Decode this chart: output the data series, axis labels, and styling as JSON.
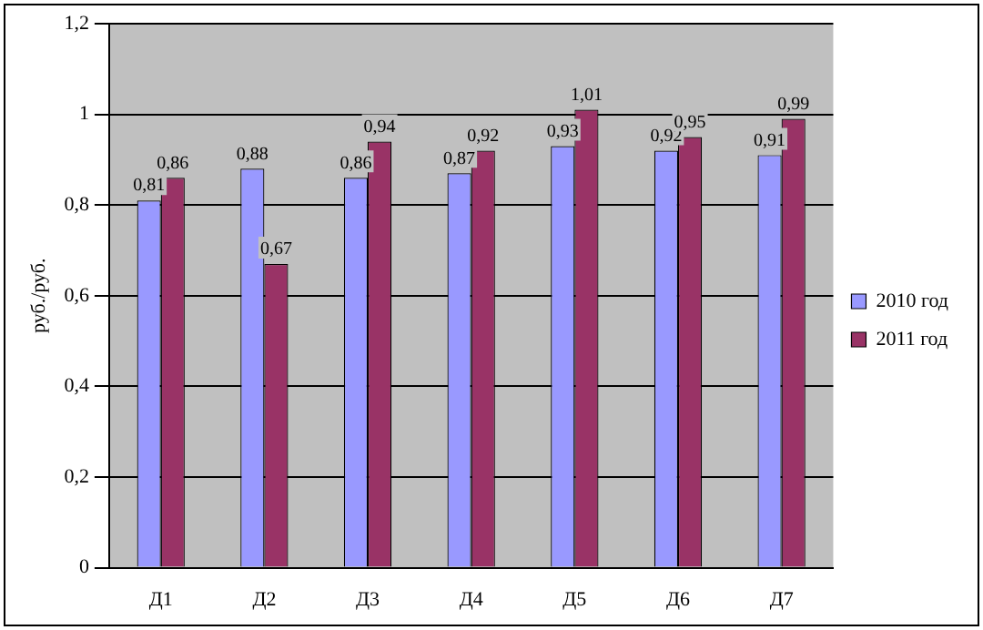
{
  "chart_data": {
    "type": "bar",
    "ylabel": "руб./руб.",
    "categories": [
      "Д1",
      "Д2",
      "Д3",
      "Д4",
      "Д5",
      "Д6",
      "Д7"
    ],
    "series": [
      {
        "name": "2010 год",
        "color": "#9999ff",
        "values": [
          0.81,
          0.88,
          0.86,
          0.87,
          0.93,
          0.92,
          0.91
        ],
        "value_labels": [
          "0,81",
          "0,88",
          "0,86",
          "0,87",
          "0,93",
          "0,92",
          "0,91"
        ]
      },
      {
        "name": "2011 год",
        "color": "#993366",
        "values": [
          0.86,
          0.67,
          0.94,
          0.92,
          1.01,
          0.95,
          0.99
        ],
        "value_labels": [
          "0,86",
          "0,67",
          "0,94",
          "0,92",
          "1,01",
          "0,95",
          "0,99"
        ]
      }
    ],
    "ylim": [
      0,
      1.2
    ],
    "yticks": [
      0,
      {
        "value": 0.2,
        "label": "0,2"
      },
      {
        "value": 0.4,
        "label": "0,4"
      },
      {
        "value": 0.6,
        "label": "0,6"
      },
      {
        "value": 0.8,
        "label": "0,8"
      },
      1,
      {
        "value": 1.2,
        "label": "1,2"
      }
    ],
    "grid": "y",
    "legend": "right"
  }
}
